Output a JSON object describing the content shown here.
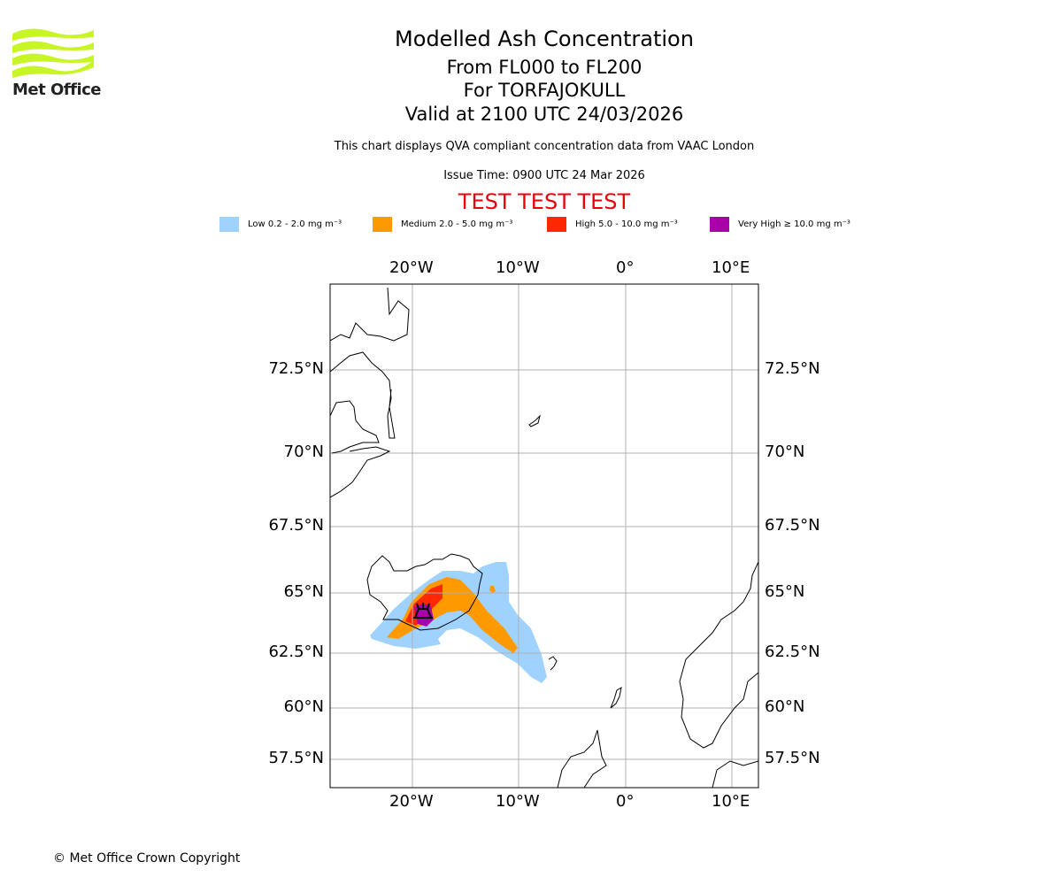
{
  "logo": {
    "text": "Met Office",
    "color": "#c8f526"
  },
  "header": {
    "title": "Modelled Ash Concentration",
    "levels": "From FL000 to FL200",
    "volcano": "For TORFAJOKULL",
    "valid": "Valid at 2100 UTC 24/03/2026",
    "subtitle": "This chart displays QVA compliant concentration data from VAAC London",
    "issue": "Issue Time: 0900 UTC 24 Mar 2026",
    "test": "TEST TEST TEST"
  },
  "chart_data": {
    "type": "map",
    "title": "Modelled Ash Concentration",
    "legend": [
      {
        "label": "Low 0.2 - 2.0 mg m⁻³",
        "color": "#a0d2ff"
      },
      {
        "label": "Medium 2.0 - 5.0 mg m⁻³",
        "color": "#ff9900"
      },
      {
        "label": "High 5.0 - 10.0 mg m⁻³",
        "color": "#ff2800"
      },
      {
        "label": "Very High ≥ 10.0 mg m⁻³",
        "color": "#aa00aa"
      }
    ],
    "lon_ticks": [
      "20°W",
      "10°W",
      "0°",
      "10°E"
    ],
    "lat_ticks": [
      "72.5°N",
      "70°N",
      "67.5°N",
      "65°N",
      "62.5°N",
      "60°N",
      "57.5°N"
    ],
    "grid": true,
    "volcano_location": {
      "lat": 63.9,
      "lon": -19.1
    }
  },
  "footer": {
    "copyright": "© Met Office Crown Copyright"
  }
}
